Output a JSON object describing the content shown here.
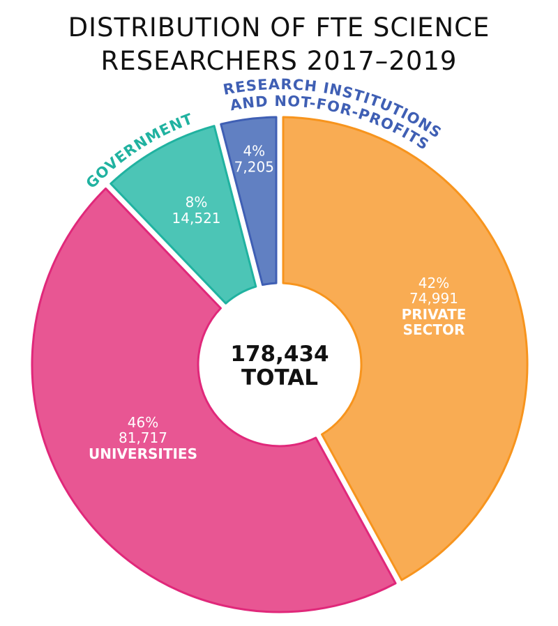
{
  "chart_data": {
    "type": "pie",
    "subtype": "donut",
    "title_lines": [
      "DISTRIBUTION OF FTE SCIENCE",
      "RESEARCHERS 2017–2019"
    ],
    "center_label": {
      "value": "178,434",
      "label": "TOTAL"
    },
    "total": 178434,
    "slices": [
      {
        "name": "PRIVATE SECTOR",
        "name_lines": [
          "PRIVATE",
          "SECTOR"
        ],
        "value": 74991,
        "value_label": "74,991",
        "percent": 42,
        "percent_label": "42%",
        "color": "#F9AC53",
        "stroke": "#F7941D",
        "label_placement": "inside"
      },
      {
        "name": "UNIVERSITIES",
        "name_lines": [
          "UNIVERSITIES"
        ],
        "value": 81717,
        "value_label": "81,717",
        "percent": 46,
        "percent_label": "46%",
        "color": "#E85693",
        "stroke": "#E0287A",
        "label_placement": "inside"
      },
      {
        "name": "GOVERNMENT",
        "name_lines": [
          "GOVERNMENT"
        ],
        "value": 14521,
        "value_label": "14,521",
        "percent": 8,
        "percent_label": "8%",
        "color": "#4CC5B6",
        "stroke": "#20B2A0",
        "label_placement": "outside-curved"
      },
      {
        "name": "RESEARCH INSTITUTIONS AND NOT-FOR-PROFITS",
        "name_lines": [
          "RESEARCH INSTITUTIONS",
          "AND NOT-FOR-PROFITS"
        ],
        "value": 7205,
        "value_label": "7,205",
        "percent": 4,
        "percent_label": "4%",
        "color": "#6180C2",
        "stroke": "#3F5FB4",
        "label_placement": "outside-curved"
      }
    ],
    "start_angle": "top",
    "direction": "clockwise"
  }
}
